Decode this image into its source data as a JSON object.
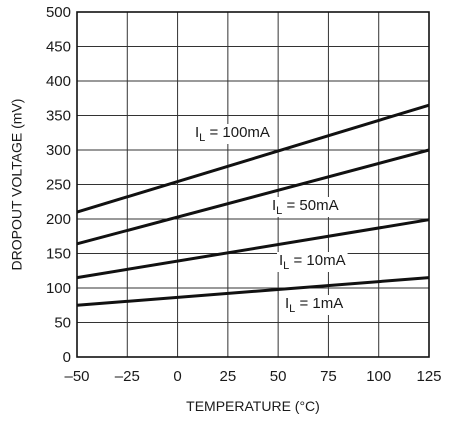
{
  "chart_data": {
    "type": "line",
    "xlabel": "TEMPERATURE (°C)",
    "ylabel": "DROPOUT VOLTAGE (mV)",
    "xlim": [
      -50,
      125
    ],
    "ylim": [
      0,
      500
    ],
    "x_ticks": [
      -50,
      -25,
      0,
      25,
      50,
      75,
      100,
      125
    ],
    "y_ticks": [
      0,
      50,
      100,
      150,
      200,
      250,
      300,
      350,
      400,
      450,
      500
    ],
    "x_tick_labels": [
      "–50",
      "–25",
      "0",
      "25",
      "50",
      "75",
      "100",
      "125"
    ],
    "grid": true,
    "legend": "none",
    "series": [
      {
        "name": "IL = 100mA",
        "label_main": "I",
        "label_sub": "L",
        "label_rest": " = 100mA",
        "x": [
          -50,
          125
        ],
        "y": [
          210,
          365
        ]
      },
      {
        "name": "IL = 50mA",
        "label_main": "I",
        "label_sub": "L",
        "label_rest": " = 50mA",
        "x": [
          -50,
          125
        ],
        "y": [
          164,
          300
        ]
      },
      {
        "name": "IL = 10mA",
        "label_main": "I",
        "label_sub": "L",
        "label_rest": " = 10mA",
        "x": [
          -50,
          125
        ],
        "y": [
          115,
          199
        ]
      },
      {
        "name": "IL = 1mA",
        "label_main": "I",
        "label_sub": "L",
        "label_rest": " = 1mA",
        "x": [
          -50,
          125
        ],
        "y": [
          75,
          115
        ]
      }
    ]
  }
}
